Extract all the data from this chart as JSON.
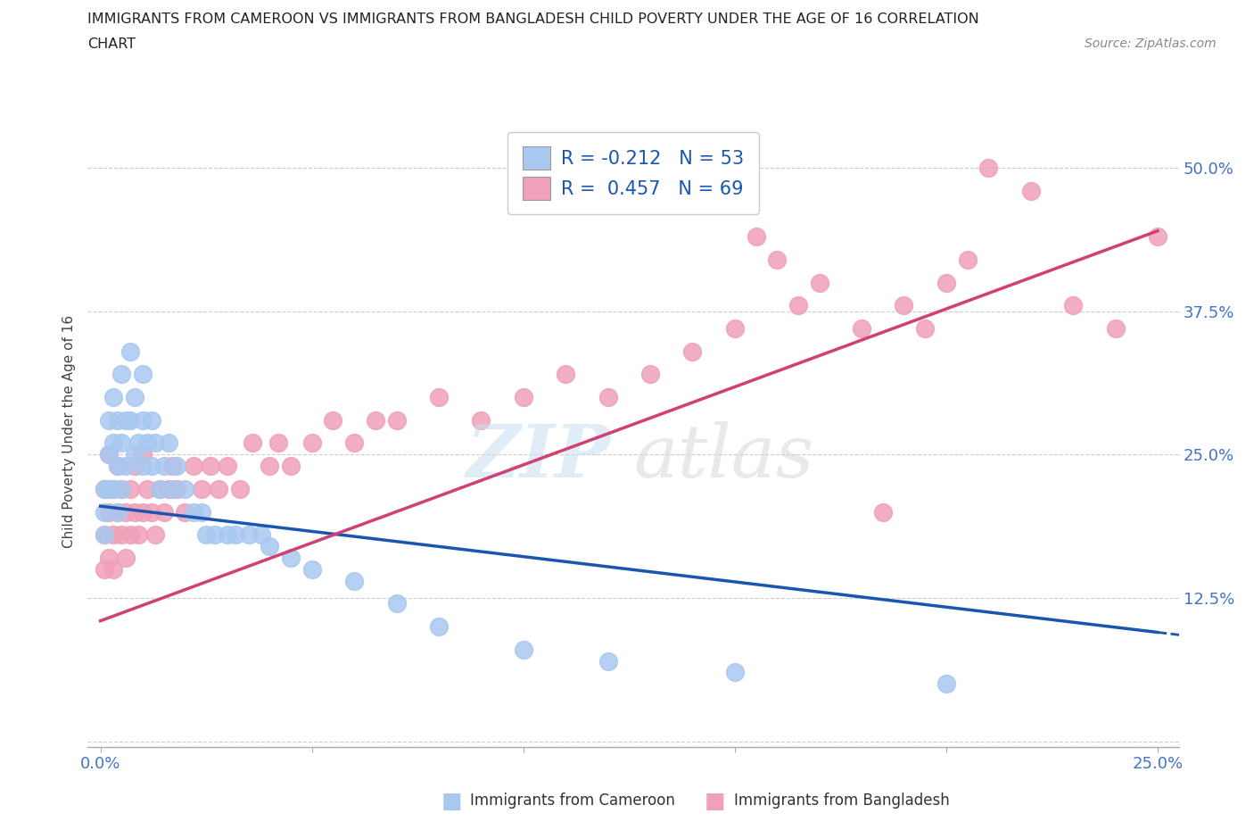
{
  "title_line1": "IMMIGRANTS FROM CAMEROON VS IMMIGRANTS FROM BANGLADESH CHILD POVERTY UNDER THE AGE OF 16 CORRELATION",
  "title_line2": "CHART",
  "source": "Source: ZipAtlas.com",
  "ylabel": "Child Poverty Under the Age of 16",
  "xlim": [
    0.0,
    0.25
  ],
  "ylim": [
    0.0,
    0.54
  ],
  "xticks": [
    0.0,
    0.05,
    0.1,
    0.15,
    0.2,
    0.25
  ],
  "xtick_labels": [
    "0.0%",
    "",
    "",
    "",
    "",
    "25.0%"
  ],
  "yticks": [
    0.0,
    0.125,
    0.25,
    0.375,
    0.5
  ],
  "ytick_labels": [
    "",
    "12.5%",
    "25.0%",
    "37.5%",
    "50.0%"
  ],
  "cameroon_color": "#a8c8f0",
  "bangladesh_color": "#f0a0b8",
  "cameroon_line_color": "#1a56b0",
  "bangladesh_line_color": "#d04070",
  "r_cameroon": -0.212,
  "n_cameroon": 53,
  "r_bangladesh": 0.457,
  "n_bangladesh": 69,
  "legend_r_color": "#1a56b0",
  "cam_line_x0": 0.0,
  "cam_line_y0": 0.205,
  "cam_line_x1": 0.25,
  "cam_line_y1": 0.095,
  "ban_line_x0": 0.0,
  "ban_line_y0": 0.105,
  "ban_line_x1": 0.25,
  "ban_line_y1": 0.445,
  "cameroon_x": [
    0.001,
    0.001,
    0.001,
    0.002,
    0.002,
    0.002,
    0.003,
    0.003,
    0.003,
    0.004,
    0.004,
    0.004,
    0.005,
    0.005,
    0.005,
    0.006,
    0.006,
    0.007,
    0.007,
    0.008,
    0.008,
    0.009,
    0.01,
    0.01,
    0.01,
    0.011,
    0.012,
    0.012,
    0.013,
    0.014,
    0.015,
    0.016,
    0.017,
    0.018,
    0.02,
    0.022,
    0.024,
    0.025,
    0.027,
    0.03,
    0.032,
    0.035,
    0.038,
    0.04,
    0.045,
    0.05,
    0.06,
    0.07,
    0.08,
    0.1,
    0.12,
    0.15,
    0.2
  ],
  "cameroon_y": [
    0.22,
    0.2,
    0.18,
    0.28,
    0.25,
    0.22,
    0.3,
    0.26,
    0.22,
    0.28,
    0.24,
    0.2,
    0.32,
    0.26,
    0.22,
    0.28,
    0.24,
    0.34,
    0.28,
    0.3,
    0.25,
    0.26,
    0.32,
    0.28,
    0.24,
    0.26,
    0.28,
    0.24,
    0.26,
    0.22,
    0.24,
    0.26,
    0.22,
    0.24,
    0.22,
    0.2,
    0.2,
    0.18,
    0.18,
    0.18,
    0.18,
    0.18,
    0.18,
    0.17,
    0.16,
    0.15,
    0.14,
    0.12,
    0.1,
    0.08,
    0.07,
    0.06,
    0.05
  ],
  "bangladesh_x": [
    0.001,
    0.001,
    0.001,
    0.002,
    0.002,
    0.002,
    0.003,
    0.003,
    0.003,
    0.004,
    0.004,
    0.005,
    0.005,
    0.006,
    0.006,
    0.007,
    0.007,
    0.008,
    0.008,
    0.009,
    0.01,
    0.01,
    0.011,
    0.012,
    0.013,
    0.014,
    0.015,
    0.016,
    0.017,
    0.018,
    0.02,
    0.022,
    0.024,
    0.026,
    0.028,
    0.03,
    0.033,
    0.036,
    0.04,
    0.042,
    0.045,
    0.05,
    0.055,
    0.06,
    0.065,
    0.07,
    0.08,
    0.09,
    0.1,
    0.11,
    0.12,
    0.13,
    0.14,
    0.15,
    0.155,
    0.16,
    0.165,
    0.17,
    0.18,
    0.185,
    0.19,
    0.195,
    0.2,
    0.205,
    0.21,
    0.22,
    0.23,
    0.24,
    0.25
  ],
  "bangladesh_y": [
    0.22,
    0.18,
    0.15,
    0.25,
    0.2,
    0.16,
    0.22,
    0.18,
    0.15,
    0.24,
    0.2,
    0.22,
    0.18,
    0.2,
    0.16,
    0.22,
    0.18,
    0.24,
    0.2,
    0.18,
    0.25,
    0.2,
    0.22,
    0.2,
    0.18,
    0.22,
    0.2,
    0.22,
    0.24,
    0.22,
    0.2,
    0.24,
    0.22,
    0.24,
    0.22,
    0.24,
    0.22,
    0.26,
    0.24,
    0.26,
    0.24,
    0.26,
    0.28,
    0.26,
    0.28,
    0.28,
    0.3,
    0.28,
    0.3,
    0.32,
    0.3,
    0.32,
    0.34,
    0.36,
    0.44,
    0.42,
    0.38,
    0.4,
    0.36,
    0.2,
    0.38,
    0.36,
    0.4,
    0.42,
    0.5,
    0.48,
    0.38,
    0.36,
    0.44
  ]
}
